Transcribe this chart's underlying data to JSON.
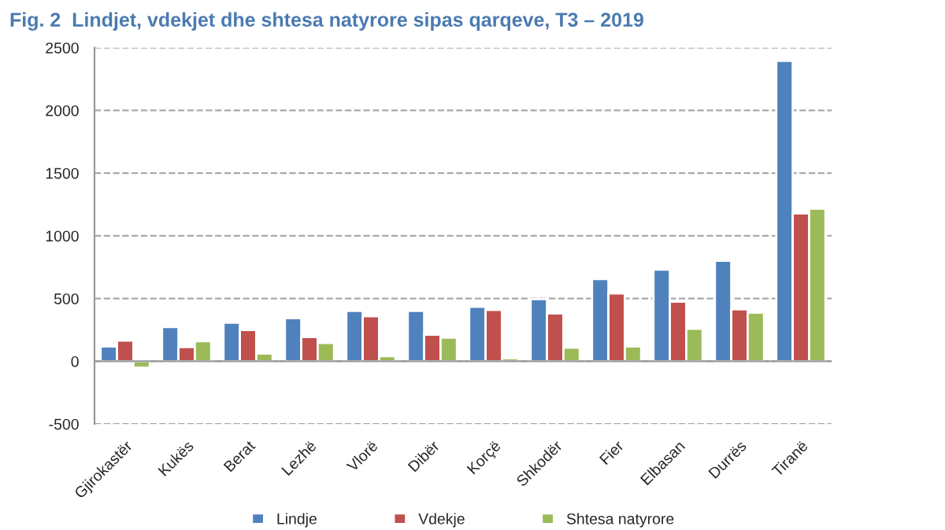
{
  "chart_data": {
    "type": "bar",
    "title": "Fig. 2  Lindjet, vdekjet dhe shtesa natyrore sipas qarqeve, T3 – 2019",
    "categories": [
      "Gjirokastër",
      "Kukës",
      "Berat",
      "Lezhë",
      "Vlorë",
      "Dibër",
      "Korçë",
      "Shkodër",
      "Fier",
      "Elbasan",
      "Durrës",
      "Tiranë"
    ],
    "series": [
      {
        "name": "Lindje",
        "color": "#4f81bd",
        "values": [
          118,
          274,
          307,
          344,
          401,
          401,
          434,
          495,
          656,
          731,
          802,
          2396
        ]
      },
      {
        "name": "Vdekje",
        "color": "#c0504d",
        "values": [
          165,
          113,
          250,
          194,
          359,
          212,
          410,
          382,
          542,
          476,
          415,
          1179
        ]
      },
      {
        "name": "Shtesa natyrore",
        "color": "#9bbb59",
        "values": [
          -52,
          160,
          61,
          146,
          42,
          189,
          24,
          108,
          118,
          259,
          387,
          1217
        ]
      }
    ],
    "ylim": [
      -500,
      2500
    ],
    "yticks": [
      -500,
      0,
      500,
      1000,
      1500,
      2000,
      2500
    ],
    "grid": "y",
    "legend": "bottom"
  }
}
